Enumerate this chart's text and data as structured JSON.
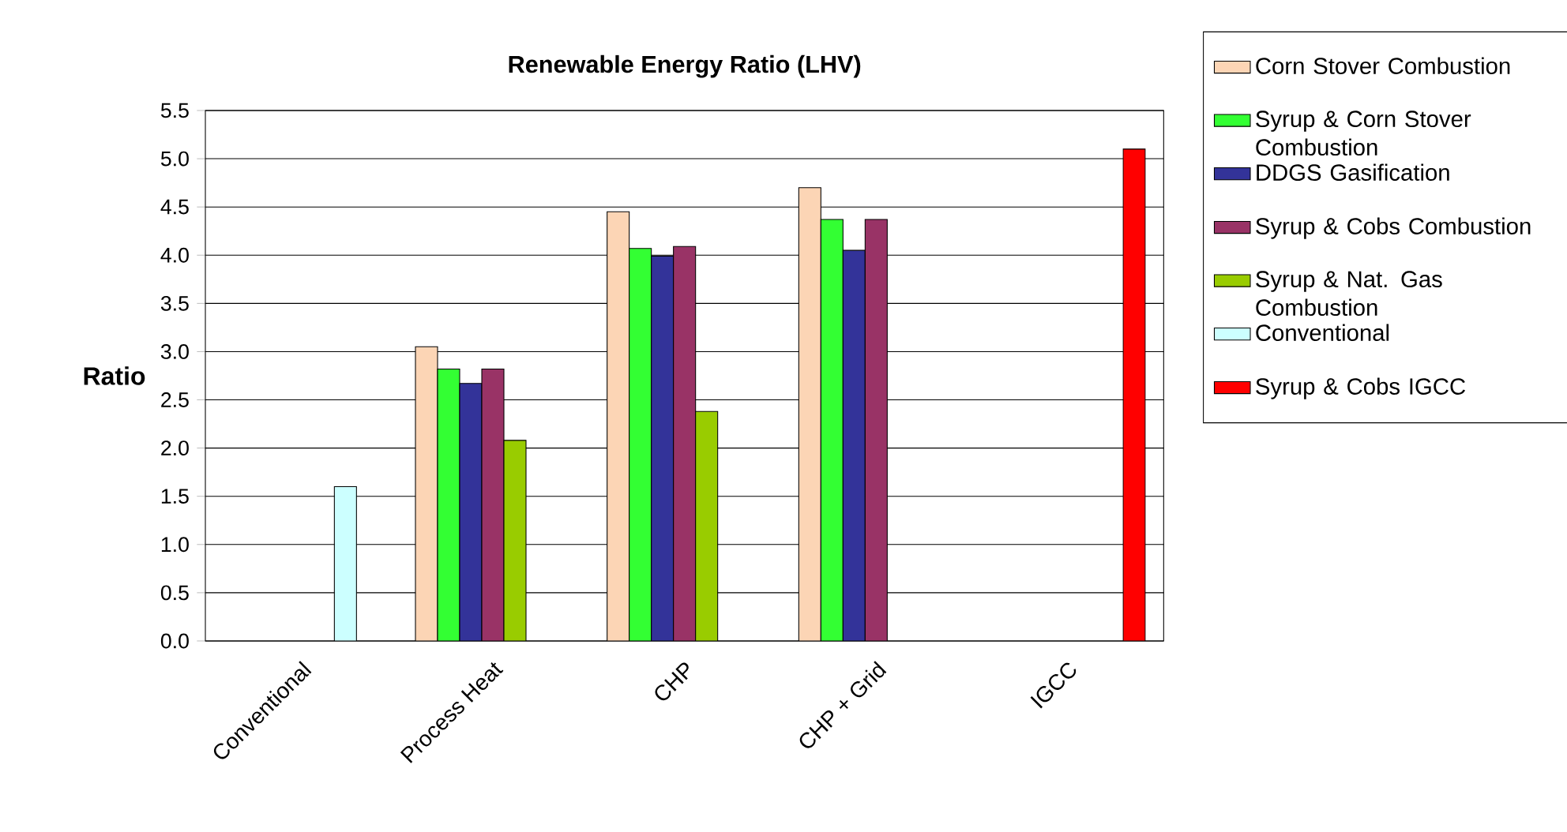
{
  "chart_data": {
    "type": "bar",
    "title": "Renewable Energy Ratio (LHV)",
    "ylabel": "Ratio",
    "categories": [
      "Conventional",
      "Process Heat",
      "CHP",
      "CHP + Grid",
      "IGCC"
    ],
    "series": [
      {
        "name": "Corn Stover Combustion",
        "color": "#fcd5b5",
        "values": [
          null,
          3.05,
          4.45,
          4.7,
          null
        ]
      },
      {
        "name": "Syrup & Corn Stover Combustion",
        "color": "#33ff33",
        "values": [
          null,
          2.82,
          4.07,
          4.37,
          null
        ]
      },
      {
        "name": "DDGS Gasification",
        "color": "#333399",
        "values": [
          null,
          2.67,
          3.99,
          4.05,
          null
        ]
      },
      {
        "name": "Syrup & Cobs Combustion",
        "color": "#993366",
        "values": [
          null,
          2.82,
          4.09,
          4.37,
          null
        ]
      },
      {
        "name": "Syrup & Nat. Gas Combustion",
        "color": "#99cc00",
        "values": [
          null,
          2.08,
          2.38,
          null,
          null
        ]
      },
      {
        "name": "Conventional",
        "color": "#ccffff",
        "values": [
          1.6,
          null,
          null,
          null,
          null
        ]
      },
      {
        "name": "Syrup & Cobs IGCC",
        "color": "#ff0000",
        "values": [
          null,
          null,
          null,
          null,
          5.1
        ]
      }
    ],
    "ylim": [
      0,
      5.5
    ],
    "yticks": [
      {
        "value": 0,
        "label": "0.0"
      },
      {
        "value": 0.5,
        "label": "0.5"
      },
      {
        "value": 1,
        "label": "1.0"
      },
      {
        "value": 1.5,
        "label": "1.5"
      },
      {
        "value": 2,
        "label": "2.0"
      },
      {
        "value": 2.5,
        "label": "2.5"
      },
      {
        "value": 3,
        "label": "3.0"
      },
      {
        "value": 3.5,
        "label": "3.5"
      },
      {
        "value": 4,
        "label": "4.0"
      },
      {
        "value": 4.5,
        "label": "4.5"
      },
      {
        "value": 5,
        "label": "5.0"
      },
      {
        "value": 5.5,
        "label": "5.5"
      }
    ],
    "grid": "y",
    "legend": "right"
  }
}
